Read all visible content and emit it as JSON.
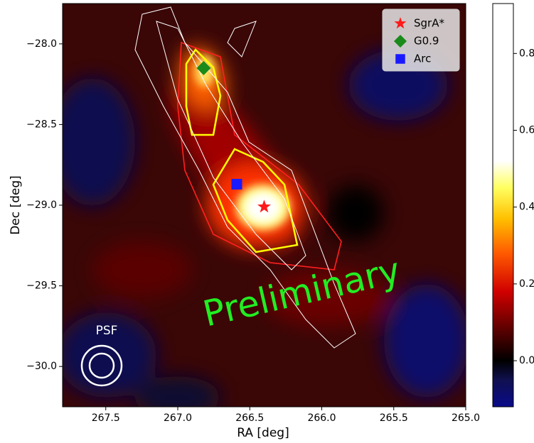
{
  "chart_data": {
    "type": "heatmap",
    "xlabel": "RA [deg]",
    "ylabel": "Dec [deg]",
    "xlim": [
      267.8,
      265.0
    ],
    "ylim": [
      -30.25,
      -27.75
    ],
    "xticks": [
      267.5,
      {
        "value": 267.0,
        "label": "267.0"
      },
      266.5,
      {
        "value": 266.0,
        "label": "266.0"
      },
      265.5,
      {
        "value": 265.0,
        "label": "265.0"
      }
    ],
    "yticks": [
      {
        "value": -28.0,
        "label": "−28.0"
      },
      {
        "value": -28.5,
        "label": "−28.5"
      },
      {
        "value": -29.0,
        "label": "−29.0"
      },
      {
        "value": -29.5,
        "label": "−29.5"
      },
      {
        "value": -30.0,
        "label": "−30.0"
      }
    ],
    "legend": "upper right",
    "series": [
      {
        "name": "SgrA*",
        "color": "#ff1a1a",
        "marker": "star",
        "x": [
          266.4
        ],
        "y": [
          -29.01
        ]
      },
      {
        "name": "G0.9",
        "color": "#1a8a1a",
        "marker": "diamond",
        "x": [
          266.82
        ],
        "y": [
          -28.15
        ]
      },
      {
        "name": "Arc",
        "color": "#1a1aff",
        "marker": "square",
        "x": [
          266.59
        ],
        "y": [
          -28.87
        ]
      }
    ],
    "colorbar": {
      "lim": [
        -0.12,
        0.93
      ],
      "ticks": [
        {
          "value": 0.0,
          "label": "0.0"
        },
        0.2,
        0.4,
        0.6,
        0.8
      ],
      "colormap": [
        {
          "value": -0.12,
          "color": "#0a0a8a"
        },
        {
          "value": -0.05,
          "color": "#101050"
        },
        {
          "value": 0.0,
          "color": "#000000"
        },
        {
          "value": 0.08,
          "color": "#5a0000"
        },
        {
          "value": 0.18,
          "color": "#d00000"
        },
        {
          "value": 0.28,
          "color": "#ff5a00"
        },
        {
          "value": 0.37,
          "color": "#ffc000"
        },
        {
          "value": 0.45,
          "color": "#ffff60"
        },
        {
          "value": 0.52,
          "color": "#ffffff"
        },
        {
          "value": 0.93,
          "color": "#ffffff"
        }
      ]
    },
    "annotations": [
      "Preliminary",
      "PSF"
    ]
  }
}
